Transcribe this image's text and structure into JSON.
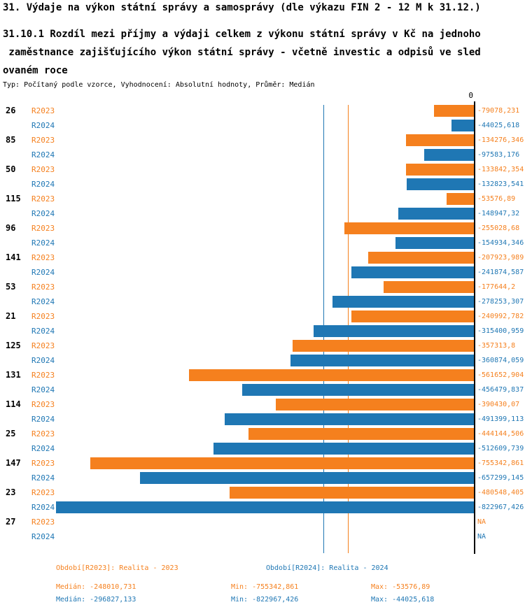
{
  "header": {
    "title": "31. Výdaje na výkon státní správy a samosprávy (dle výkazu FIN 2 - 12 M k 31.12.)",
    "subtitle_lines": [
      "31.10.1 Rozdíl mezi příjmy a výdaji celkem z výkonu státní správy v Kč na jednoho",
      " zaměstnance zajišťujícího výkon státní správy - včetně investic a odpisů ve sled",
      "ovaném roce"
    ],
    "meta": "Typ: Počítaný podle vzorce, Vyhodnocení: Absolutní hodnoty, Průměr: Medián"
  },
  "colors": {
    "r2023": "#F5801E",
    "r2024": "#1F77B4",
    "axis": "#000000"
  },
  "chart_data": {
    "type": "bar",
    "orientation": "horizontal",
    "zero_label": "0",
    "xlim": [
      -830000,
      0
    ],
    "series": [
      "R2023",
      "R2024"
    ],
    "rows": [
      {
        "id": "26",
        "v2023": -79078.231,
        "v2024": -44025.618,
        "l2023": "-79078,231",
        "l2024": "-44025,618"
      },
      {
        "id": "85",
        "v2023": -134276.346,
        "v2024": -97583.176,
        "l2023": "-134276,346",
        "l2024": "-97583,176"
      },
      {
        "id": "50",
        "v2023": -133842.354,
        "v2024": -132823.541,
        "l2023": "-133842,354",
        "l2024": "-132823,541"
      },
      {
        "id": "115",
        "v2023": -53576.89,
        "v2024": -148947.32,
        "l2023": "-53576,89",
        "l2024": "-148947,32"
      },
      {
        "id": "96",
        "v2023": -255028.68,
        "v2024": -154934.346,
        "l2023": "-255028,68",
        "l2024": "-154934,346"
      },
      {
        "id": "141",
        "v2023": -207923.989,
        "v2024": -241874.587,
        "l2023": "-207923,989",
        "l2024": "-241874,587"
      },
      {
        "id": "53",
        "v2023": -177644.2,
        "v2024": -278253.307,
        "l2023": "-177644,2",
        "l2024": "-278253,307"
      },
      {
        "id": "21",
        "v2023": -240992.782,
        "v2024": -315400.959,
        "l2023": "-240992,782",
        "l2024": "-315400,959"
      },
      {
        "id": "125",
        "v2023": -357313.8,
        "v2024": -360874.059,
        "l2023": "-357313,8",
        "l2024": "-360874,059"
      },
      {
        "id": "131",
        "v2023": -561652.904,
        "v2024": -456479.837,
        "l2023": "-561652,904",
        "l2024": "-456479,837"
      },
      {
        "id": "114",
        "v2023": -390430.07,
        "v2024": -491399.113,
        "l2023": "-390430,07",
        "l2024": "-491399,113"
      },
      {
        "id": "25",
        "v2023": -444144.506,
        "v2024": -512609.739,
        "l2023": "-444144,506",
        "l2024": "-512609,739"
      },
      {
        "id": "147",
        "v2023": -755342.861,
        "v2024": -657299.145,
        "l2023": "-755342,861",
        "l2024": "-657299,145"
      },
      {
        "id": "23",
        "v2023": -480548.405,
        "v2024": -822967.426,
        "l2023": "-480548,405",
        "l2024": "-822967,426"
      },
      {
        "id": "27",
        "v2023": null,
        "v2024": null,
        "l2023": "NA",
        "l2024": "NA"
      }
    ],
    "medians": {
      "R2023": -248010.731,
      "R2024": -296827.133
    }
  },
  "legend": {
    "r2023": "Období[R2023]: Realita - 2023",
    "r2024": "Období[R2024]: Realita - 2024"
  },
  "stats": {
    "r2023": {
      "median": "Medián: -248010,731",
      "min": "Min: -755342,861",
      "max": "Max: -53576,89"
    },
    "r2024": {
      "median": "Medián: -296827,133",
      "min": "Min: -822967,426",
      "max": "Max: -44025,618"
    }
  }
}
